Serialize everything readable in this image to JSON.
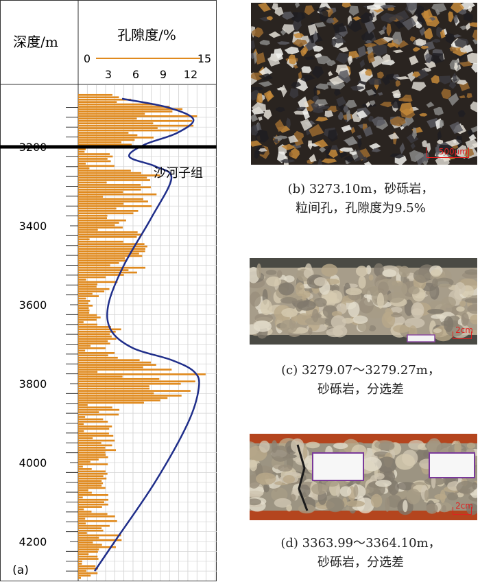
{
  "chart_data": {
    "type": "bar",
    "orientation": "horizontal",
    "panel_label": "(a)",
    "y_axis": {
      "label": "深度/m",
      "ticks": [
        3200,
        3400,
        3600,
        3800,
        4000,
        4200
      ],
      "range": [
        3050,
        4290
      ]
    },
    "x_axis": {
      "label": "孔隙度/%",
      "legend_range": [
        "0",
        "15"
      ],
      "ticks": [
        3,
        6,
        9,
        12
      ],
      "range": [
        0,
        15
      ]
    },
    "formation_label": "沙河子组",
    "boundary_depth": 3200,
    "bar_color": "#e08a1e",
    "curve_color": "#1f2e8a",
    "curve_points": [
      {
        "depth": 3078,
        "porosity": 4.8
      },
      {
        "depth": 3100,
        "porosity": 9.8
      },
      {
        "depth": 3130,
        "porosity": 12.6
      },
      {
        "depth": 3165,
        "porosity": 10.8
      },
      {
        "depth": 3195,
        "porosity": 7.2
      },
      {
        "depth": 3225,
        "porosity": 5.6
      },
      {
        "depth": 3250,
        "porosity": 8.5
      },
      {
        "depth": 3280,
        "porosity": 10.2
      },
      {
        "depth": 3380,
        "porosity": 8.0
      },
      {
        "depth": 3500,
        "porosity": 5.0
      },
      {
        "depth": 3600,
        "porosity": 3.3
      },
      {
        "depth": 3665,
        "porosity": 3.6
      },
      {
        "depth": 3710,
        "porosity": 6.0
      },
      {
        "depth": 3740,
        "porosity": 10.2
      },
      {
        "depth": 3770,
        "porosity": 12.7
      },
      {
        "depth": 3810,
        "porosity": 13.2
      },
      {
        "depth": 3900,
        "porosity": 12.0
      },
      {
        "depth": 4050,
        "porosity": 8.4
      },
      {
        "depth": 4200,
        "porosity": 4.0
      },
      {
        "depth": 4275,
        "porosity": 1.8
      }
    ],
    "bar_envelope": [
      {
        "depth": 3068,
        "max": 4.5
      },
      {
        "depth": 3085,
        "max": 8.5
      },
      {
        "depth": 3100,
        "max": 12.5
      },
      {
        "depth": 3130,
        "max": 14.5
      },
      {
        "depth": 3160,
        "max": 11.5
      },
      {
        "depth": 3180,
        "max": 7.0
      },
      {
        "depth": 3200,
        "max": 6.0
      },
      {
        "depth": 3215,
        "max": 4.0
      },
      {
        "depth": 3240,
        "max": 5.5
      },
      {
        "depth": 3260,
        "max": 10.0
      },
      {
        "depth": 3300,
        "max": 9.5
      },
      {
        "depth": 3350,
        "max": 8.0
      },
      {
        "depth": 3400,
        "max": 7.0
      },
      {
        "depth": 3450,
        "max": 9.0
      },
      {
        "depth": 3520,
        "max": 7.0
      },
      {
        "depth": 3580,
        "max": 2.0
      },
      {
        "depth": 3620,
        "max": 2.0
      },
      {
        "depth": 3660,
        "max": 5.5
      },
      {
        "depth": 3700,
        "max": 3.5
      },
      {
        "depth": 3740,
        "max": 8.0
      },
      {
        "depth": 3770,
        "max": 14.5
      },
      {
        "depth": 3800,
        "max": 14.8
      },
      {
        "depth": 3830,
        "max": 12.5
      },
      {
        "depth": 3850,
        "max": 7.0
      },
      {
        "depth": 3900,
        "max": 4.0
      },
      {
        "depth": 3950,
        "max": 4.5
      },
      {
        "depth": 4000,
        "max": 3.5
      },
      {
        "depth": 4050,
        "max": 3.0
      },
      {
        "depth": 4100,
        "max": 3.5
      },
      {
        "depth": 4150,
        "max": 5.5
      },
      {
        "depth": 4180,
        "max": 6.5
      },
      {
        "depth": 4220,
        "max": 4.0
      },
      {
        "depth": 4260,
        "max": 2.5
      },
      {
        "depth": 4290,
        "max": 2.0
      }
    ],
    "bar_step_m": 6
  },
  "photos": [
    {
      "id": "b",
      "scale_label": "500μm",
      "caption_lines": [
        "(b) 3273.10m，砂砾岩，",
        "粒间孔，孔隙度为9.5%"
      ]
    },
    {
      "id": "c",
      "scale_label": "2cm",
      "caption_lines": [
        "(c) 3279.07～3279.27m，",
        "砂砾岩，分选差"
      ]
    },
    {
      "id": "d",
      "scale_label": "2cm",
      "caption_lines": [
        "(d) 3363.99～3364.10m，",
        "砂砾岩，分选差"
      ]
    }
  ]
}
